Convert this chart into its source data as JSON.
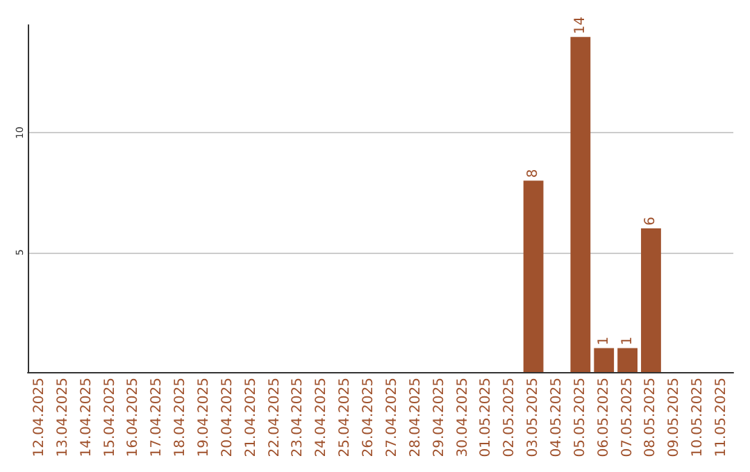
{
  "chart_data": {
    "type": "bar",
    "categories": [
      "12.04.2025",
      "13.04.2025",
      "14.04.2025",
      "15.04.2025",
      "16.04.2025",
      "17.04.2025",
      "18.04.2025",
      "19.04.2025",
      "20.04.2025",
      "21.04.2025",
      "22.04.2025",
      "23.04.2025",
      "24.04.2025",
      "25.04.2025",
      "26.04.2025",
      "27.04.2025",
      "28.04.2025",
      "29.04.2025",
      "30.04.2025",
      "01.05.2025",
      "02.05.2025",
      "03.05.2025",
      "04.05.2025",
      "05.05.2025",
      "06.05.2025",
      "07.05.2025",
      "08.05.2025",
      "09.05.2025",
      "10.05.2025",
      "11.05.2025"
    ],
    "values": [
      0,
      0,
      0,
      0,
      0,
      0,
      0,
      0,
      0,
      0,
      0,
      0,
      0,
      0,
      0,
      0,
      0,
      0,
      0,
      0,
      0,
      8,
      0,
      14,
      1,
      1,
      6,
      0,
      0,
      0
    ],
    "value_labels": [
      null,
      null,
      null,
      null,
      null,
      null,
      null,
      null,
      null,
      null,
      null,
      null,
      null,
      null,
      null,
      null,
      null,
      null,
      null,
      null,
      null,
      "8",
      null,
      "14",
      "1",
      "1",
      "6",
      null,
      null,
      null
    ],
    "color": "#a0522d",
    "ylim": [
      0,
      14.5
    ],
    "yticks": [
      5,
      10
    ],
    "grid": "y"
  }
}
